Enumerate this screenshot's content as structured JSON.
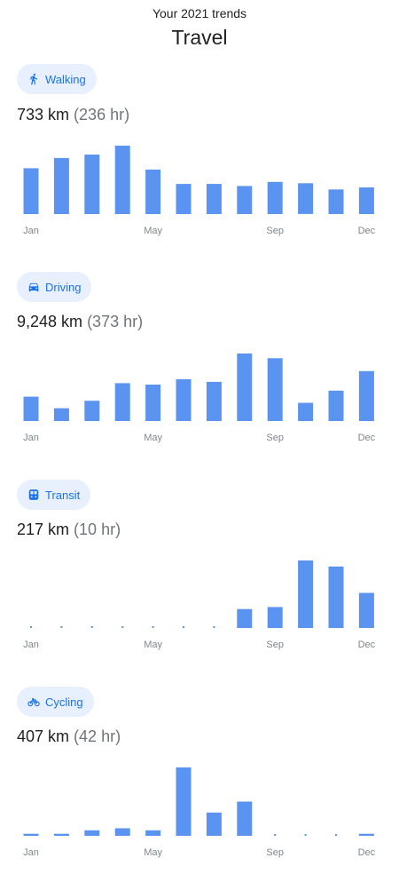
{
  "header": {
    "subtitle": "Your 2021 trends",
    "title": "Travel"
  },
  "colors": {
    "bar": "#5a94f0",
    "chip_bg": "#e8f0fe",
    "chip_text": "#1a73e8",
    "tick_label": "#80868b"
  },
  "sections": [
    {
      "key": "walking",
      "icon": "walking-icon",
      "label": "Walking",
      "distance": "733 km",
      "duration": "(236 hr)"
    },
    {
      "key": "driving",
      "icon": "car-icon",
      "label": "Driving",
      "distance": "9,248 km",
      "duration": "(373 hr)"
    },
    {
      "key": "transit",
      "icon": "train-icon",
      "label": "Transit",
      "distance": "217 km",
      "duration": "(10 hr)"
    },
    {
      "key": "cycling",
      "icon": "bike-icon",
      "label": "Cycling",
      "distance": "407 km",
      "duration": "(42 hr)"
    }
  ],
  "chart_data": [
    {
      "type": "bar",
      "title": "Walking",
      "categories": [
        "Jan",
        "Feb",
        "Mar",
        "Apr",
        "May",
        "Jun",
        "Jul",
        "Aug",
        "Sep",
        "Oct",
        "Nov",
        "Dec"
      ],
      "tick_labels": [
        "Jan",
        "May",
        "Sep",
        "Dec"
      ],
      "values": [
        67,
        82,
        87,
        100,
        65,
        44,
        44,
        41,
        47,
        45,
        36,
        39
      ],
      "ylim": [
        0,
        100
      ],
      "grid": false,
      "legend": "none"
    },
    {
      "type": "bar",
      "title": "Driving",
      "categories": [
        "Jan",
        "Feb",
        "Mar",
        "Apr",
        "May",
        "Jun",
        "Jul",
        "Aug",
        "Sep",
        "Oct",
        "Nov",
        "Dec"
      ],
      "tick_labels": [
        "Jan",
        "May",
        "Sep",
        "Dec"
      ],
      "values": [
        36,
        19,
        30,
        56,
        54,
        62,
        58,
        100,
        93,
        27,
        45,
        74
      ],
      "ylim": [
        0,
        100
      ],
      "grid": false,
      "legend": "none"
    },
    {
      "type": "bar",
      "title": "Transit",
      "categories": [
        "Jan",
        "Feb",
        "Mar",
        "Apr",
        "May",
        "Jun",
        "Jul",
        "Aug",
        "Sep",
        "Oct",
        "Nov",
        "Dec"
      ],
      "tick_labels": [
        "Jan",
        "May",
        "Sep",
        "Dec"
      ],
      "values": [
        0,
        0,
        0,
        0,
        0,
        0,
        0,
        28,
        31,
        100,
        91,
        52
      ],
      "ylim": [
        0,
        100
      ],
      "grid": false,
      "legend": "none"
    },
    {
      "type": "bar",
      "title": "Cycling",
      "categories": [
        "Jan",
        "Feb",
        "Mar",
        "Apr",
        "May",
        "Jun",
        "Jul",
        "Aug",
        "Sep",
        "Oct",
        "Nov",
        "Dec"
      ],
      "tick_labels": [
        "Jan",
        "May",
        "Sep",
        "Dec"
      ],
      "values": [
        3,
        3,
        8,
        11,
        8,
        100,
        34,
        50,
        0,
        0,
        0,
        3
      ],
      "ylim": [
        0,
        100
      ],
      "grid": false,
      "legend": "none"
    }
  ]
}
